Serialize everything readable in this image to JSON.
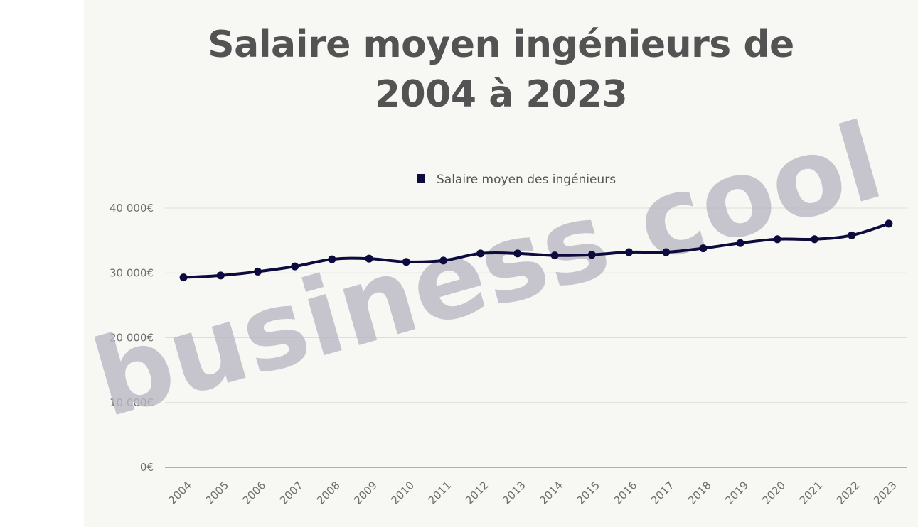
{
  "chart_data": {
    "type": "line",
    "title_lines": [
      "Salaire moyen ingénieurs de",
      "2004 à 2023"
    ],
    "categories": [
      "2004",
      "2005",
      "2006",
      "2007",
      "2008",
      "2009",
      "2010",
      "2011",
      "2012",
      "2013",
      "2014",
      "2015",
      "2016",
      "2017",
      "2018",
      "2019",
      "2020",
      "2021",
      "2022",
      "2023"
    ],
    "series": [
      {
        "name": "Salaire moyen des ingénieurs",
        "color": "#0d0b3d",
        "values": [
          29300,
          29600,
          30200,
          31000,
          32100,
          32200,
          31700,
          31900,
          33000,
          33000,
          32700,
          32800,
          33200,
          33200,
          33800,
          34600,
          35200,
          35200,
          35800,
          37600
        ]
      }
    ],
    "ylim": [
      0,
      40000
    ],
    "yticks": [
      0,
      10000,
      20000,
      30000,
      40000
    ],
    "ytick_labels": [
      "0€",
      "10 000€",
      "20 000€",
      "30 000€",
      "40 000€"
    ],
    "xlabel": "",
    "ylabel": "",
    "grid": true,
    "legend_position": "top-center",
    "watermark": "business cool"
  }
}
